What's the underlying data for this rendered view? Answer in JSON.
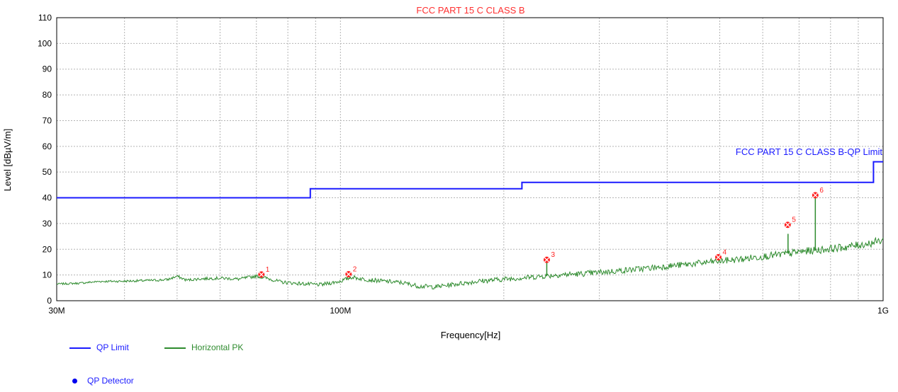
{
  "chart_data": {
    "type": "line",
    "title": "FCC PART 15 C CLASS B",
    "xlabel": "Frequency[Hz]",
    "ylabel": "Level [dBµV/m]",
    "x_scale": "log",
    "xlim": [
      30000000,
      1000000000
    ],
    "ylim": [
      0,
      110
    ],
    "y_ticks": [
      0,
      10,
      20,
      30,
      40,
      50,
      60,
      70,
      80,
      90,
      100,
      110
    ],
    "x_tick_labels": [
      {
        "value": 30000000,
        "label": "30M"
      },
      {
        "value": 100000000,
        "label": "100M"
      },
      {
        "value": 1000000000,
        "label": "1G"
      }
    ],
    "x_minor_ticks": [
      40000000,
      50000000,
      60000000,
      70000000,
      80000000,
      90000000,
      200000000,
      300000000,
      400000000,
      500000000,
      600000000,
      700000000,
      800000000,
      900000000
    ],
    "grid": true,
    "limit_label": "FCC PART 15 C CLASS B-QP Limit",
    "series": [
      {
        "name": "QP Limit",
        "color": "#1a1aff",
        "style": "step",
        "points": [
          [
            30000000,
            40
          ],
          [
            88000000,
            40
          ],
          [
            88000000,
            43.5
          ],
          [
            216000000,
            43.5
          ],
          [
            216000000,
            46
          ],
          [
            960000000,
            46
          ],
          [
            960000000,
            54
          ],
          [
            1000000000,
            54
          ]
        ]
      },
      {
        "name": "Horizontal PK",
        "color": "#2e8b2e",
        "style": "noisy",
        "points": [
          [
            30000000,
            6.5
          ],
          [
            33000000,
            6.8
          ],
          [
            36000000,
            7.5
          ],
          [
            40000000,
            7.6
          ],
          [
            45000000,
            7.9
          ],
          [
            48000000,
            8.2
          ],
          [
            50000000,
            9.5
          ],
          [
            52000000,
            8.0
          ],
          [
            55000000,
            8.5
          ],
          [
            60000000,
            8.8
          ],
          [
            65000000,
            8.4
          ],
          [
            70000000,
            9.6
          ],
          [
            73000000,
            8.8
          ],
          [
            78000000,
            7.2
          ],
          [
            85000000,
            6.6
          ],
          [
            92000000,
            6.2
          ],
          [
            100000000,
            7.6
          ],
          [
            105000000,
            9.2
          ],
          [
            110000000,
            8.4
          ],
          [
            120000000,
            7.6
          ],
          [
            130000000,
            7.0
          ],
          [
            140000000,
            5.6
          ],
          [
            150000000,
            5.4
          ],
          [
            165000000,
            6.6
          ],
          [
            180000000,
            7.6
          ],
          [
            200000000,
            8.4
          ],
          [
            220000000,
            9.0
          ],
          [
            250000000,
            10.0
          ],
          [
            280000000,
            10.5
          ],
          [
            320000000,
            11.5
          ],
          [
            350000000,
            12.2
          ],
          [
            400000000,
            13.4
          ],
          [
            450000000,
            14.4
          ],
          [
            500000000,
            15.4
          ],
          [
            550000000,
            16.2
          ],
          [
            600000000,
            17.2
          ],
          [
            650000000,
            18.0
          ],
          [
            700000000,
            19.0
          ],
          [
            750000000,
            19.6
          ],
          [
            800000000,
            20.2
          ],
          [
            850000000,
            20.8
          ],
          [
            900000000,
            21.6
          ],
          [
            950000000,
            22.4
          ],
          [
            1000000000,
            23.6
          ]
        ],
        "spikes": [
          [
            72000000,
            10.5
          ],
          [
            104000000,
            10.5
          ],
          [
            240000000,
            15.5
          ],
          [
            498000000,
            17.0
          ],
          [
            668000000,
            26.0
          ],
          [
            750000000,
            40.5
          ]
        ]
      }
    ],
    "markers": [
      {
        "label": "1",
        "x": 71500000,
        "y": 10.2
      },
      {
        "label": "2",
        "x": 103500000,
        "y": 10.3
      },
      {
        "label": "3",
        "x": 240000000,
        "y": 15.9
      },
      {
        "label": "4",
        "x": 497000000,
        "y": 16.9
      },
      {
        "label": "5",
        "x": 667000000,
        "y": 29.5
      },
      {
        "label": "6",
        "x": 750000000,
        "y": 41.0
      }
    ],
    "legend": [
      {
        "name": "QP Limit",
        "kind": "line",
        "color": "#1a1aff"
      },
      {
        "name": "Horizontal PK",
        "kind": "line",
        "color": "#2e8b2e"
      },
      {
        "name": "QP Detector",
        "kind": "dot",
        "color": "#0000ee"
      }
    ]
  }
}
